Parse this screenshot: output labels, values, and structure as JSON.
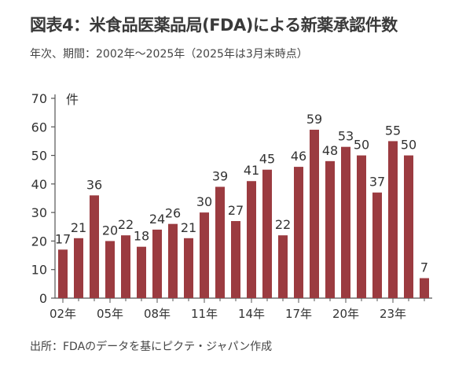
{
  "header": {
    "title": "図表4：米食品医薬品局(FDA)による新薬承認件数",
    "subtitle": "年次、期間：2002年～2025年（2025年は3月末時点）"
  },
  "footer": {
    "source": "出所：FDAのデータを基にピクテ・ジャパン作成"
  },
  "colors": {
    "bar": "#9b3b40",
    "axis": "#555555",
    "text": "#333333"
  },
  "chart_data": {
    "type": "bar",
    "categories": [
      "02年",
      "03年",
      "04年",
      "05年",
      "06年",
      "07年",
      "08年",
      "09年",
      "10年",
      "11年",
      "12年",
      "13年",
      "14年",
      "15年",
      "16年",
      "17年",
      "18年",
      "19年",
      "20年",
      "21年",
      "22年",
      "23年",
      "24年",
      "25年"
    ],
    "x_tick_labels": [
      "02年",
      "05年",
      "08年",
      "11年",
      "14年",
      "17年",
      "20年",
      "23年"
    ],
    "values": [
      17,
      21,
      36,
      20,
      22,
      18,
      24,
      26,
      21,
      30,
      39,
      27,
      41,
      45,
      22,
      46,
      59,
      48,
      53,
      50,
      37,
      55,
      50,
      7
    ],
    "ylabel": "件",
    "ylim": [
      0,
      70
    ],
    "y_ticks": [
      0,
      10,
      20,
      30,
      40,
      50,
      60,
      70
    ],
    "grid": false,
    "data_labels": true
  }
}
